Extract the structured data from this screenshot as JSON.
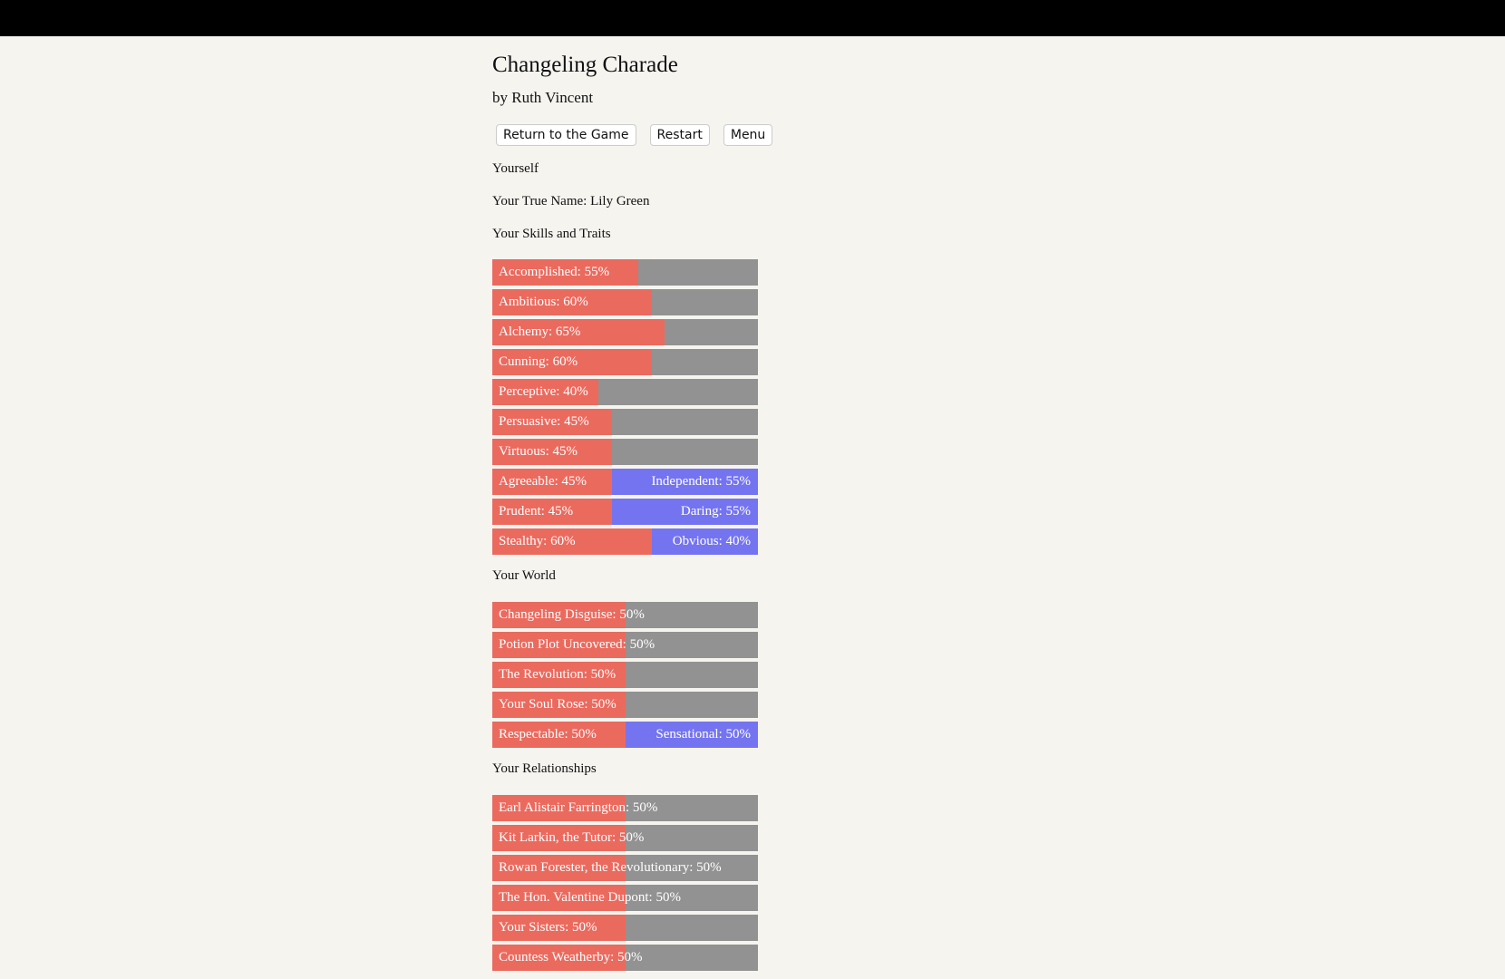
{
  "header": {
    "title": "Changeling Charade",
    "author": "by Ruth Vincent"
  },
  "buttons": [
    "Return to the Game",
    "Restart",
    "Menu"
  ],
  "section_title": "Yourself",
  "true_name": "Your True Name: Lily Green",
  "sections": [
    {
      "heading": "Your Skills and Traits",
      "bars": [
        {
          "label": "Accomplished: 55%",
          "value": 55
        },
        {
          "label": "Ambitious: 60%",
          "value": 60
        },
        {
          "label": "Alchemy: 65%",
          "value": 65
        },
        {
          "label": "Cunning: 60%",
          "value": 60
        },
        {
          "label": "Perceptive: 40%",
          "value": 40
        },
        {
          "label": "Persuasive: 45%",
          "value": 45
        },
        {
          "label": "Virtuous: 45%",
          "value": 45
        },
        {
          "label": "Agreeable: 45%",
          "value": 45,
          "right_label": "Independent: 55%",
          "right_value": 55
        },
        {
          "label": "Prudent: 45%",
          "value": 45,
          "right_label": "Daring: 55%",
          "right_value": 55
        },
        {
          "label": "Stealthy: 60%",
          "value": 60,
          "right_label": "Obvious: 40%",
          "right_value": 40
        }
      ]
    },
    {
      "heading": "Your World",
      "bars": [
        {
          "label": "Changeling Disguise: 50%",
          "value": 50
        },
        {
          "label": "Potion Plot Uncovered: 50%",
          "value": 50
        },
        {
          "label": "The Revolution: 50%",
          "value": 50
        },
        {
          "label": "Your Soul Rose: 50%",
          "value": 50
        },
        {
          "label": "Respectable: 50%",
          "value": 50,
          "right_label": "Sensational: 50%",
          "right_value": 50
        }
      ]
    },
    {
      "heading": "Your Relationships",
      "bars": [
        {
          "label": "Earl Alistair Farrington: 50%",
          "value": 50
        },
        {
          "label": "Kit Larkin, the Tutor: 50%",
          "value": 50
        },
        {
          "label": "Rowan Forester, the Revolutionary: 50%",
          "value": 50
        },
        {
          "label": "The Hon. Valentine Dupont: 50%",
          "value": 50
        },
        {
          "label": "Your Sisters: 50%",
          "value": 50
        },
        {
          "label": "Countess Weatherby: 50%",
          "value": 50
        }
      ]
    }
  ]
}
